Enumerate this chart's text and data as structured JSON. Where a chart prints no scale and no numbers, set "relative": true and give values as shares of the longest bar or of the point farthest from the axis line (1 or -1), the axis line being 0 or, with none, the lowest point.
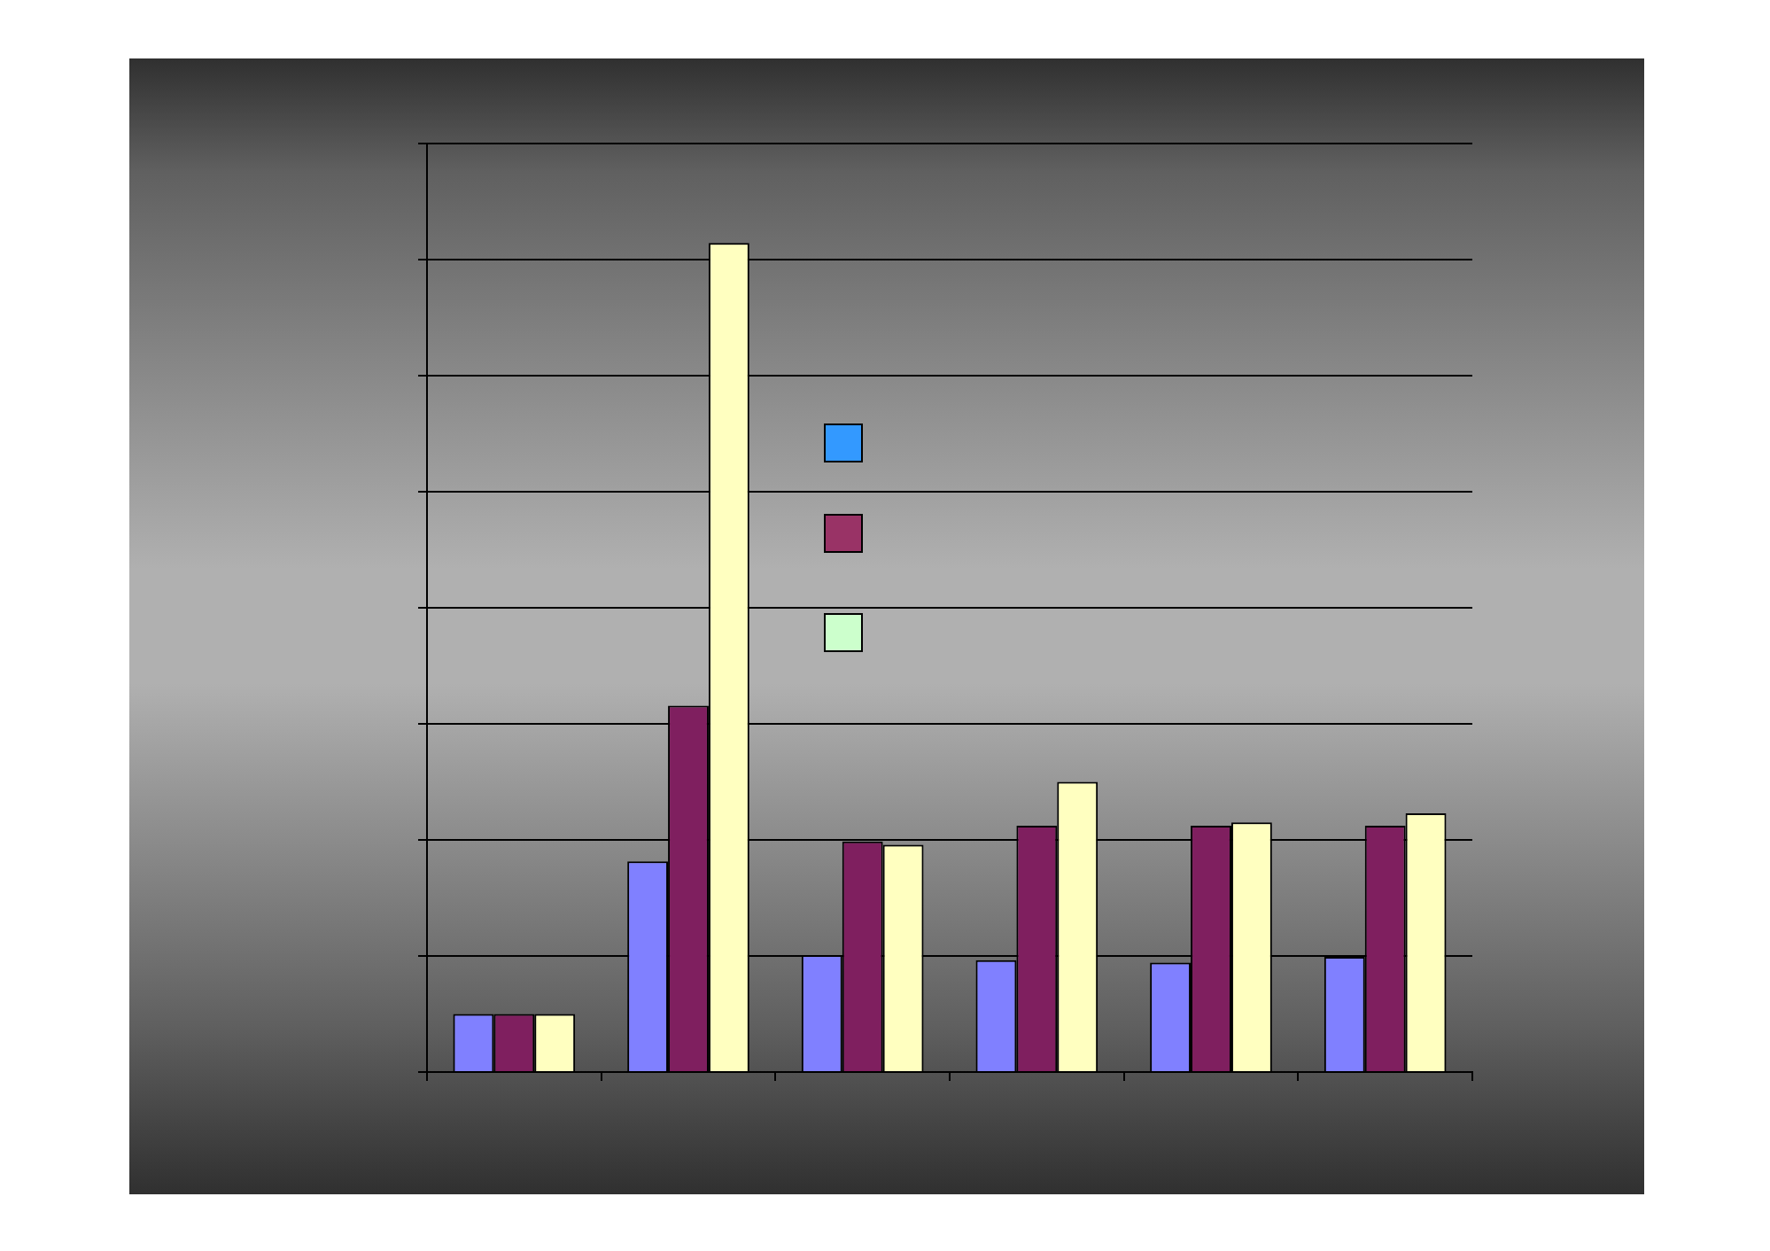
{
  "chart_data": {
    "type": "bar",
    "relative": true,
    "grid": "y",
    "categories": [
      null,
      null,
      null,
      null,
      null,
      null
    ],
    "series": [
      {
        "color": "#8080ff",
        "values": [
          0.07,
          0.254,
          0.141,
          0.135,
          0.132,
          0.139
        ]
      },
      {
        "color": "#7f1f5f",
        "values": [
          0.07,
          0.442,
          0.278,
          0.297,
          0.297,
          0.297
        ]
      },
      {
        "color": "#ffffc0",
        "values": [
          0.07,
          1,
          0.274,
          0.35,
          0.301,
          0.312
        ]
      }
    ]
  }
}
